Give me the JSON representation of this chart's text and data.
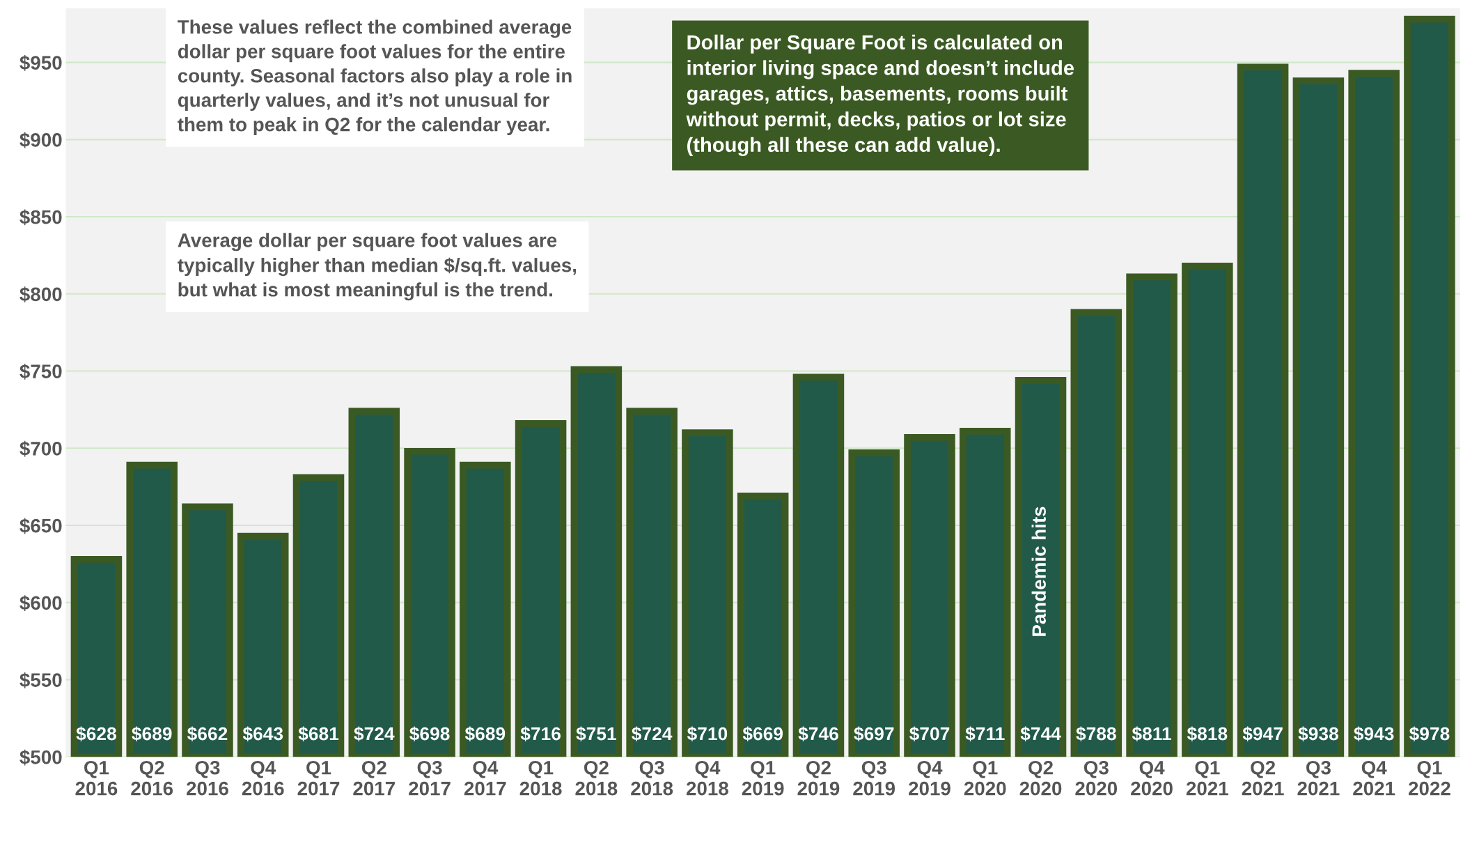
{
  "chart_data": {
    "type": "bar",
    "categories": [
      "Q1\n2016",
      "Q2\n2016",
      "Q3\n2016",
      "Q4\n2016",
      "Q1\n2017",
      "Q2\n2017",
      "Q3\n2017",
      "Q4\n2017",
      "Q1\n2018",
      "Q2\n2018",
      "Q3\n2018",
      "Q4\n2018",
      "Q1\n2019",
      "Q2\n2019",
      "Q3\n2019",
      "Q4\n2019",
      "Q1\n2020",
      "Q2\n2020",
      "Q3\n2020",
      "Q4\n2020",
      "Q1\n2021",
      "Q2\n2021",
      "Q3\n2021",
      "Q4\n2021",
      "Q1\n2022"
    ],
    "values": [
      628,
      689,
      662,
      643,
      681,
      724,
      698,
      689,
      716,
      751,
      724,
      710,
      669,
      746,
      697,
      707,
      711,
      744,
      788,
      811,
      818,
      947,
      938,
      943,
      978
    ],
    "value_labels": [
      "$628",
      "$689",
      "$662",
      "$643",
      "$681",
      "$724",
      "$698",
      "$689",
      "$716",
      "$751",
      "$724",
      "$710",
      "$669",
      "$746",
      "$697",
      "$707",
      "$711",
      "$744",
      "$788",
      "$811",
      "$818",
      "$947",
      "$938",
      "$943",
      "$978"
    ],
    "color": "#225a4a",
    "ylim": [
      500,
      985
    ],
    "yticks": [
      {
        "value": 500,
        "label": "$500"
      },
      {
        "value": 550,
        "label": "$550"
      },
      {
        "value": 600,
        "label": "$600"
      },
      {
        "value": 650,
        "label": "$650"
      },
      {
        "value": 700,
        "label": "$700"
      },
      {
        "value": 750,
        "label": "$750"
      },
      {
        "value": 800,
        "label": "$800"
      },
      {
        "value": 850,
        "label": "$850"
      },
      {
        "value": 900,
        "label": "$900"
      },
      {
        "value": 950,
        "label": "$950"
      }
    ],
    "grid": "y",
    "annotations": [
      "These values reflect the combined average\ndollar per square foot values for the entire\ncounty. Seasonal factors also play a role in\nquarterly values, and it’s not unusual for\nthem to peak in Q2 for the calendar year.",
      "Average dollar per square foot values are\ntypically higher than median $/sq.ft. values,\nbut what is most meaningful is the trend.",
      "Dollar per Square Foot is calculated on\ninterior living space and doesn’t include\ngarages, attics, basements, rooms built\nwithout permit, decks, patios or lot size\n(though all these can add value).",
      "Pandemic hits"
    ]
  }
}
